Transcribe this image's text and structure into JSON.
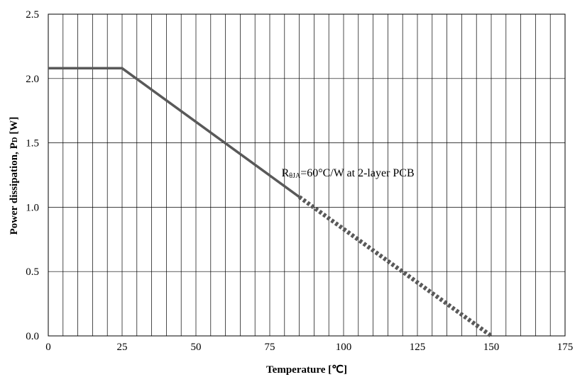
{
  "chart_data": {
    "type": "line",
    "xlabel": "Temperature [℃]",
    "ylabel": "Power dissipation, PD [W]",
    "ylabel_main": "Power dissipation, P",
    "ylabel_sub": "D",
    "ylabel_unit": " [W]",
    "xlim": [
      0,
      175
    ],
    "ylim": [
      0,
      2.5
    ],
    "x_ticks": [
      0,
      25,
      50,
      75,
      100,
      125,
      150,
      175
    ],
    "y_ticks": [
      0.0,
      0.5,
      1.0,
      1.5,
      2.0,
      2.5
    ],
    "x_tick_labels": [
      "0",
      "25",
      "50",
      "75",
      "100",
      "125",
      "150",
      "175"
    ],
    "y_tick_labels": [
      "0.0",
      "0.5",
      "1.0",
      "1.5",
      "2.0",
      "2.5"
    ],
    "x_minor_step": 5,
    "grid": true,
    "series": [
      {
        "style": "solid",
        "color": "#595959",
        "x": [
          0,
          25,
          85
        ],
        "y": [
          2.08,
          2.08,
          1.08
        ]
      },
      {
        "style": "dotted",
        "color": "#595959",
        "x": [
          85,
          150
        ],
        "y": [
          1.08,
          0.0
        ]
      }
    ],
    "annotation": {
      "text": "RθJA=60°C/W at 2-layer PCB",
      "main": "R",
      "sub": "θJA",
      "rest": "=60°C/W at 2-layer PCB",
      "x": 79,
      "y": 1.24
    }
  }
}
